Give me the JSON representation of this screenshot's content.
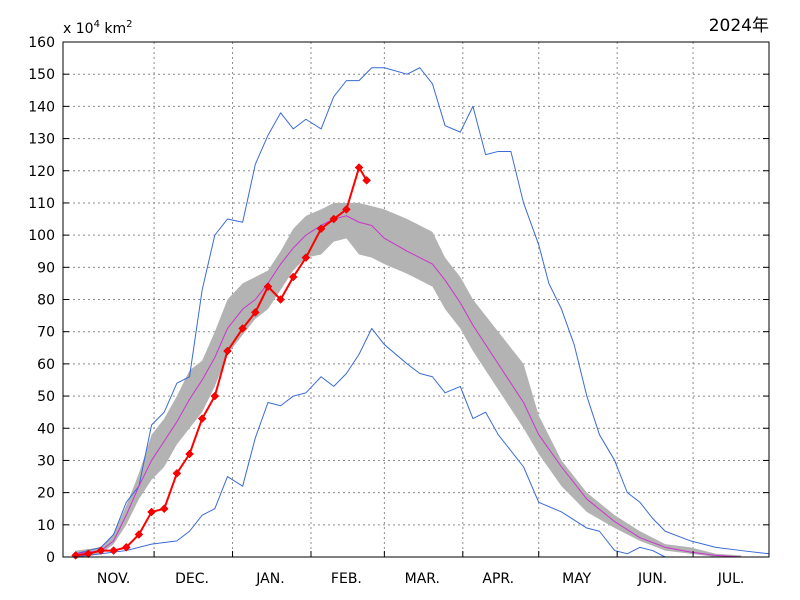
{
  "chart_data": {
    "type": "line",
    "title": "2024年",
    "unit_label": {
      "prefix": "x 10",
      "exp1": "4",
      "mid": " km",
      "exp2": "2"
    },
    "xlabel": "",
    "ylabel": "",
    "ylim": [
      0,
      160
    ],
    "yticks": [
      0,
      10,
      20,
      30,
      40,
      50,
      60,
      70,
      80,
      90,
      100,
      110,
      120,
      130,
      140,
      150,
      160
    ],
    "ytick_labels": [
      "0",
      "10",
      "20",
      "30",
      "40",
      "50",
      "60",
      "70",
      "80",
      "90",
      "100",
      "110",
      "120",
      "130",
      "140",
      "150",
      "160"
    ],
    "xlim": [
      "Oct 26",
      "Jul 31"
    ],
    "month_labels": [
      "NOV.",
      "DEC.",
      "JAN.",
      "FEB.",
      "MAR.",
      "APR.",
      "MAY",
      "JUN.",
      "JUL."
    ],
    "grid": true,
    "colors": {
      "band": "#b3b3b3",
      "mean": "#cc33cc",
      "extreme": "#3a6bd6",
      "current": "#ff0000"
    },
    "band": [
      [
        "Oct 31",
        0,
        2
      ],
      [
        "Nov 10",
        1,
        3
      ],
      [
        "Nov 15",
        4,
        7
      ],
      [
        "Nov 20",
        10,
        16
      ],
      [
        "Nov 25",
        18,
        26
      ],
      [
        "Nov 30",
        24,
        38
      ],
      [
        "Dec 5",
        28,
        43
      ],
      [
        "Dec 10",
        35,
        50
      ],
      [
        "Dec 15",
        40,
        58
      ],
      [
        "Dec 20",
        45,
        61
      ],
      [
        "Dec 25",
        53,
        70
      ],
      [
        "Dec 30",
        63,
        80
      ],
      [
        "Jan 5",
        69,
        85
      ],
      [
        "Jan 10",
        74,
        87
      ],
      [
        "Jan 15",
        77,
        89
      ],
      [
        "Jan 20",
        83,
        95
      ],
      [
        "Jan 25",
        89,
        102
      ],
      [
        "Jan 30",
        93,
        106
      ],
      [
        "Feb 5",
        94,
        108
      ],
      [
        "Feb 10",
        98,
        110
      ],
      [
        "Feb 15",
        99,
        110
      ],
      [
        "Feb 20",
        94,
        110
      ],
      [
        "Feb 25",
        93,
        109
      ],
      [
        "Mar 1",
        91,
        108
      ],
      [
        "Mar 10",
        88,
        105
      ],
      [
        "Mar 20",
        84,
        101
      ],
      [
        "Mar 25",
        77,
        93
      ],
      [
        "Mar 31",
        71,
        87
      ],
      [
        "Apr 5",
        64,
        80
      ],
      [
        "Apr 15",
        52,
        70
      ],
      [
        "Apr 25",
        40,
        60
      ],
      [
        "May 1",
        32,
        44
      ],
      [
        "May 10",
        22,
        30
      ],
      [
        "May 20",
        14,
        20
      ],
      [
        "May 31",
        9,
        13
      ],
      [
        "Jun 10",
        5,
        8
      ],
      [
        "Jun 20",
        2,
        4
      ],
      [
        "Jun 30",
        1,
        3
      ],
      [
        "Jul 10",
        0,
        1
      ],
      [
        "Jul 20",
        0,
        0.5
      ]
    ],
    "series": [
      {
        "kind": "mean",
        "points": [
          [
            "Oct 31",
            1
          ],
          [
            "Nov 10",
            2
          ],
          [
            "Nov 15",
            5
          ],
          [
            "Nov 20",
            13
          ],
          [
            "Nov 25",
            22
          ],
          [
            "Nov 30",
            30
          ],
          [
            "Dec 5",
            36
          ],
          [
            "Dec 10",
            42
          ],
          [
            "Dec 15",
            49
          ],
          [
            "Dec 20",
            55
          ],
          [
            "Dec 25",
            62
          ],
          [
            "Dec 30",
            71
          ],
          [
            "Jan 5",
            77
          ],
          [
            "Jan 10",
            80
          ],
          [
            "Jan 15",
            85
          ],
          [
            "Jan 20",
            91
          ],
          [
            "Jan 25",
            96
          ],
          [
            "Jan 30",
            100
          ],
          [
            "Feb 5",
            103
          ],
          [
            "Feb 10",
            105
          ],
          [
            "Feb 15",
            106
          ],
          [
            "Feb 20",
            104
          ],
          [
            "Feb 25",
            103
          ],
          [
            "Mar 1",
            99
          ],
          [
            "Mar 10",
            95
          ],
          [
            "Mar 20",
            91
          ],
          [
            "Mar 25",
            86
          ],
          [
            "Mar 31",
            79
          ],
          [
            "Apr 5",
            72
          ],
          [
            "Apr 15",
            60
          ],
          [
            "Apr 25",
            48
          ],
          [
            "May 1",
            38
          ],
          [
            "May 10",
            28
          ],
          [
            "May 20",
            18
          ],
          [
            "May 31",
            11
          ],
          [
            "Jun 10",
            6
          ],
          [
            "Jun 20",
            3
          ],
          [
            "Jun 30",
            1.5
          ],
          [
            "Jul 10",
            0.5
          ],
          [
            "Jul 20",
            0
          ]
        ]
      },
      {
        "kind": "max",
        "points": [
          [
            "Oct 31",
            1
          ],
          [
            "Nov 5",
            2
          ],
          [
            "Nov 10",
            3
          ],
          [
            "Nov 15",
            7
          ],
          [
            "Nov 20",
            17
          ],
          [
            "Nov 25",
            22
          ],
          [
            "Nov 30",
            41
          ],
          [
            "Dec 5",
            45
          ],
          [
            "Dec 10",
            54
          ],
          [
            "Dec 15",
            56
          ],
          [
            "Dec 20",
            83
          ],
          [
            "Dec 25",
            100
          ],
          [
            "Dec 30",
            105
          ],
          [
            "Jan 5",
            104
          ],
          [
            "Jan 10",
            122
          ],
          [
            "Jan 15",
            131
          ],
          [
            "Jan 20",
            138
          ],
          [
            "Jan 25",
            133
          ],
          [
            "Jan 30",
            136
          ],
          [
            "Feb 5",
            133
          ],
          [
            "Feb 10",
            143
          ],
          [
            "Feb 15",
            148
          ],
          [
            "Feb 20",
            148
          ],
          [
            "Feb 25",
            152
          ],
          [
            "Mar 1",
            152
          ],
          [
            "Mar 10",
            150
          ],
          [
            "Mar 15",
            152
          ],
          [
            "Mar 20",
            147
          ],
          [
            "Mar 25",
            134
          ],
          [
            "Mar 31",
            132
          ],
          [
            "Apr 5",
            140
          ],
          [
            "Apr 10",
            125
          ],
          [
            "Apr 15",
            126
          ],
          [
            "Apr 20",
            126
          ],
          [
            "Apr 25",
            110
          ],
          [
            "May 1",
            97
          ],
          [
            "May 5",
            85
          ],
          [
            "May 10",
            77
          ],
          [
            "May 15",
            66
          ],
          [
            "May 20",
            50
          ],
          [
            "May 25",
            38
          ],
          [
            "May 31",
            30
          ],
          [
            "Jun 5",
            20
          ],
          [
            "Jun 10",
            17
          ],
          [
            "Jun 15",
            12
          ],
          [
            "Jun 20",
            8
          ],
          [
            "Jun 30",
            5
          ],
          [
            "Jul 10",
            3
          ],
          [
            "Jul 20",
            2
          ],
          [
            "Jul 31",
            1
          ]
        ]
      },
      {
        "kind": "min",
        "points": [
          [
            "Oct 31",
            0
          ],
          [
            "Nov 10",
            1
          ],
          [
            "Nov 20",
            2
          ],
          [
            "Nov 30",
            4
          ],
          [
            "Dec 10",
            5
          ],
          [
            "Dec 15",
            8
          ],
          [
            "Dec 20",
            13
          ],
          [
            "Dec 25",
            15
          ],
          [
            "Dec 30",
            25
          ],
          [
            "Jan 5",
            22
          ],
          [
            "Jan 10",
            37
          ],
          [
            "Jan 15",
            48
          ],
          [
            "Jan 20",
            47
          ],
          [
            "Jan 25",
            50
          ],
          [
            "Jan 30",
            51
          ],
          [
            "Feb 5",
            56
          ],
          [
            "Feb 10",
            53
          ],
          [
            "Feb 15",
            57
          ],
          [
            "Feb 20",
            63
          ],
          [
            "Feb 25",
            71
          ],
          [
            "Mar 1",
            66
          ],
          [
            "Mar 10",
            60
          ],
          [
            "Mar 15",
            57
          ],
          [
            "Mar 20",
            56
          ],
          [
            "Mar 25",
            51
          ],
          [
            "Mar 31",
            53
          ],
          [
            "Apr 5",
            43
          ],
          [
            "Apr 10",
            45
          ],
          [
            "Apr 15",
            38
          ],
          [
            "Apr 25",
            28
          ],
          [
            "May 1",
            17
          ],
          [
            "May 10",
            14
          ],
          [
            "May 20",
            9
          ],
          [
            "May 25",
            8
          ],
          [
            "May 31",
            2
          ],
          [
            "Jun 5",
            1
          ],
          [
            "Jun 10",
            3
          ],
          [
            "Jun 15",
            2
          ],
          [
            "Jun 20",
            0
          ],
          [
            "Jul 31",
            0
          ]
        ]
      },
      {
        "kind": "current",
        "name": "2024",
        "points": [
          [
            "Oct 31",
            0.5
          ],
          [
            "Nov 5",
            1
          ],
          [
            "Nov 10",
            2
          ],
          [
            "Nov 15",
            2
          ],
          [
            "Nov 20",
            3
          ],
          [
            "Nov 25",
            7
          ],
          [
            "Nov 30",
            14
          ],
          [
            "Dec 5",
            15
          ],
          [
            "Dec 10",
            26
          ],
          [
            "Dec 15",
            32
          ],
          [
            "Dec 20",
            43
          ],
          [
            "Dec 25",
            50
          ],
          [
            "Dec 30",
            64
          ],
          [
            "Jan 5",
            71
          ],
          [
            "Jan 10",
            76
          ],
          [
            "Jan 15",
            84
          ],
          [
            "Jan 20",
            80
          ],
          [
            "Jan 25",
            87
          ],
          [
            "Jan 30",
            93
          ],
          [
            "Feb 5",
            102
          ],
          [
            "Feb 10",
            105
          ],
          [
            "Feb 15",
            108
          ],
          [
            "Feb 20",
            121
          ],
          [
            "Feb 23",
            117
          ]
        ]
      }
    ]
  }
}
